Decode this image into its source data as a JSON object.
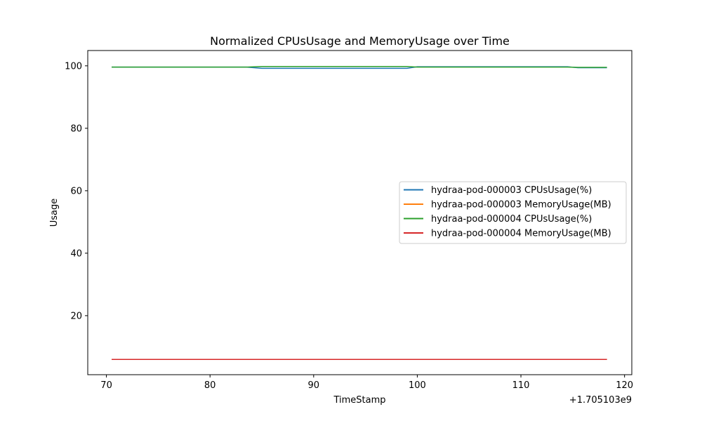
{
  "chart_data": {
    "type": "line",
    "title": "Normalized CPUsUsage and MemoryUsage over Time",
    "xlabel": "TimeStamp",
    "ylabel": "Usage",
    "x_offset_label": "+1.705103e9",
    "xlim": [
      68.2,
      120.7
    ],
    "ylim": [
      1.1,
      104.9
    ],
    "xticks": [
      70,
      80,
      90,
      100,
      110,
      120
    ],
    "yticks": [
      20,
      40,
      60,
      80,
      100
    ],
    "grid": false,
    "legend_position": "center-right",
    "series": [
      {
        "name": "hydraa-pod-000003 CPUsUsage(%)",
        "color": "#1f77b4",
        "x": [
          70.5,
          83.5,
          85.0,
          99.0,
          100.0,
          114.5,
          115.5,
          118.3
        ],
        "y": [
          99.6,
          99.6,
          99.2,
          99.2,
          99.7,
          99.7,
          99.4,
          99.4
        ]
      },
      {
        "name": "hydraa-pod-000003 MemoryUsage(MB)",
        "color": "#ff7f0e",
        "x": [
          70.5,
          118.3
        ],
        "y": [
          6.0,
          6.0
        ]
      },
      {
        "name": "hydraa-pod-000004 CPUsUsage(%)",
        "color": "#2ca02c",
        "x": [
          70.5,
          83.5,
          85.0,
          99.0,
          100.0,
          114.5,
          115.5,
          118.3
        ],
        "y": [
          99.6,
          99.6,
          99.8,
          99.8,
          99.6,
          99.6,
          99.5,
          99.5
        ]
      },
      {
        "name": "hydraa-pod-000004 MemoryUsage(MB)",
        "color": "#d62728",
        "x": [
          70.5,
          118.3
        ],
        "y": [
          6.0,
          6.0
        ]
      }
    ]
  }
}
